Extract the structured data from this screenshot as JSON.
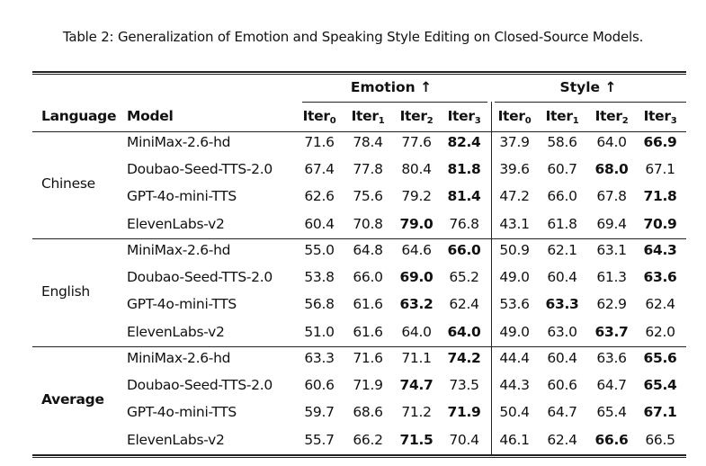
{
  "caption": "Table 2: Generalization of Emotion and Speaking Style Editing on Closed-Source Models.",
  "header": {
    "language": "Language",
    "model": "Model",
    "groups": [
      "Emotion ↑",
      "Style ↑"
    ],
    "iter_base": "Iter",
    "iter_subs": [
      "0",
      "1",
      "2",
      "3",
      "0",
      "1",
      "2",
      "3"
    ]
  },
  "sections": [
    {
      "language": "Chinese",
      "language_bold": false,
      "rows": [
        {
          "model": "MiniMax-2.6-hd",
          "values": [
            "71.6",
            "78.4",
            "77.6",
            "82.4",
            "37.9",
            "58.6",
            "64.0",
            "66.9"
          ],
          "bold": [
            3,
            7
          ]
        },
        {
          "model": "Doubao-Seed-TTS-2.0",
          "values": [
            "67.4",
            "77.8",
            "80.4",
            "81.8",
            "39.6",
            "60.7",
            "68.0",
            "67.1"
          ],
          "bold": [
            3,
            6
          ]
        },
        {
          "model": "GPT-4o-mini-TTS",
          "values": [
            "62.6",
            "75.6",
            "79.2",
            "81.4",
            "47.2",
            "66.0",
            "67.8",
            "71.8"
          ],
          "bold": [
            3,
            7
          ]
        },
        {
          "model": "ElevenLabs-v2",
          "values": [
            "60.4",
            "70.8",
            "79.0",
            "76.8",
            "43.1",
            "61.8",
            "69.4",
            "70.9"
          ],
          "bold": [
            2,
            7
          ]
        }
      ]
    },
    {
      "language": "English",
      "language_bold": false,
      "rows": [
        {
          "model": "MiniMax-2.6-hd",
          "values": [
            "55.0",
            "64.8",
            "64.6",
            "66.0",
            "50.9",
            "62.1",
            "63.1",
            "64.3"
          ],
          "bold": [
            3,
            7
          ]
        },
        {
          "model": "Doubao-Seed-TTS-2.0",
          "values": [
            "53.8",
            "66.0",
            "69.0",
            "65.2",
            "49.0",
            "60.4",
            "61.3",
            "63.6"
          ],
          "bold": [
            2,
            7
          ]
        },
        {
          "model": "GPT-4o-mini-TTS",
          "values": [
            "56.8",
            "61.6",
            "63.2",
            "62.4",
            "53.6",
            "63.3",
            "62.9",
            "62.4"
          ],
          "bold": [
            2,
            5
          ]
        },
        {
          "model": "ElevenLabs-v2",
          "values": [
            "51.0",
            "61.6",
            "64.0",
            "64.0",
            "49.0",
            "63.0",
            "63.7",
            "62.0"
          ],
          "bold": [
            3,
            6
          ]
        }
      ]
    },
    {
      "language": "Average",
      "language_bold": true,
      "rows": [
        {
          "model": "MiniMax-2.6-hd",
          "values": [
            "63.3",
            "71.6",
            "71.1",
            "74.2",
            "44.4",
            "60.4",
            "63.6",
            "65.6"
          ],
          "bold": [
            3,
            7
          ]
        },
        {
          "model": "Doubao-Seed-TTS-2.0",
          "values": [
            "60.6",
            "71.9",
            "74.7",
            "73.5",
            "44.3",
            "60.6",
            "64.7",
            "65.4"
          ],
          "bold": [
            2,
            7
          ]
        },
        {
          "model": "GPT-4o-mini-TTS",
          "values": [
            "59.7",
            "68.6",
            "71.2",
            "71.9",
            "50.4",
            "64.7",
            "65.4",
            "67.1"
          ],
          "bold": [
            3,
            7
          ]
        },
        {
          "model": "ElevenLabs-v2",
          "values": [
            "55.7",
            "66.2",
            "71.5",
            "70.4",
            "46.1",
            "62.4",
            "66.6",
            "66.5"
          ],
          "bold": [
            2,
            6
          ]
        }
      ]
    }
  ]
}
